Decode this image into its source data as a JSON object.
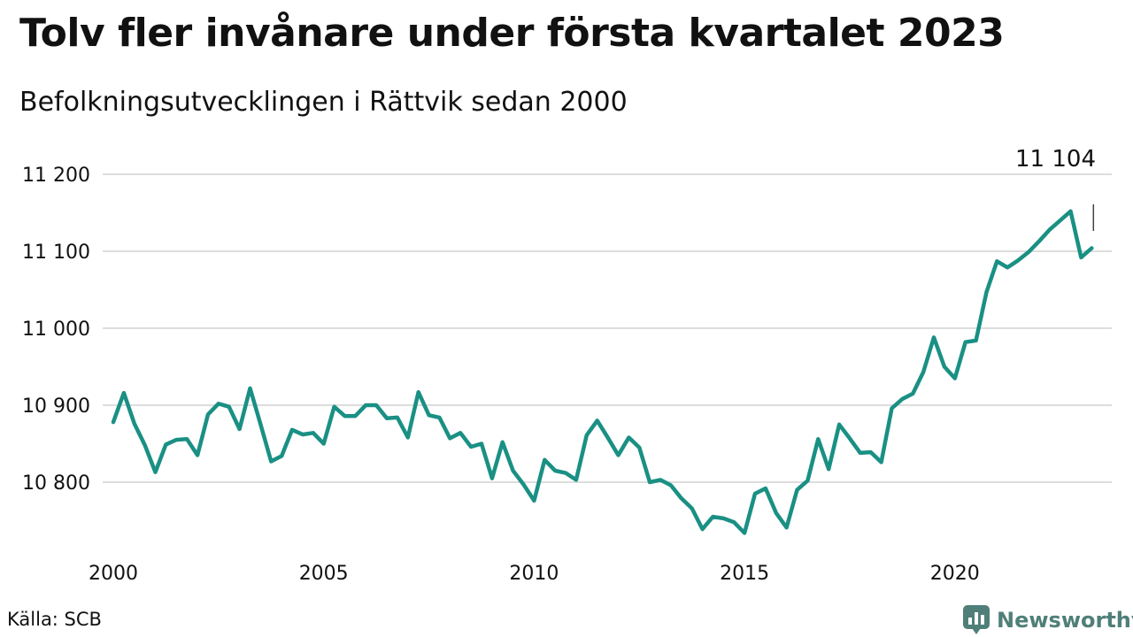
{
  "header": {
    "title": "Tolv fler invånare under första kvartalet 2023",
    "subtitle": "Befolkningsutvecklingen i Rättvik sedan 2000"
  },
  "footer": {
    "source": "Källa: SCB",
    "brand": "Newsworthy"
  },
  "colors": {
    "line": "#1a9084",
    "grid": "#dddddd",
    "text": "#111111",
    "brand": "#4f7f78"
  },
  "chart_data": {
    "type": "line",
    "title": "Tolv fler invånare under första kvartalet 2023",
    "subtitle": "Befolkningsutvecklingen i Rättvik sedan 2000",
    "xlabel": "",
    "ylabel": "",
    "grid": true,
    "legend": "none",
    "x_unit": "quarter",
    "x_start": "2000 Q1",
    "ylim": [
      10720,
      11220
    ],
    "y_ticks": [
      {
        "value": 10800,
        "label": "10 800"
      },
      {
        "value": 10900,
        "label": "10 900"
      },
      {
        "value": 11000,
        "label": "11 000"
      },
      {
        "value": 11100,
        "label": "11 100"
      },
      {
        "value": 11200,
        "label": "11 200"
      }
    ],
    "x_ticks": [
      {
        "value": 2000,
        "label": "2000"
      },
      {
        "value": 2005,
        "label": "2005"
      },
      {
        "value": 2010,
        "label": "2010"
      },
      {
        "value": 2015,
        "label": "2015"
      },
      {
        "value": 2020,
        "label": "2020"
      }
    ],
    "annotation": {
      "label": "11 104",
      "target": "last point"
    },
    "series": [
      {
        "values": [
          10878,
          10916,
          10876,
          10848,
          10813,
          10849,
          10855,
          10856,
          10835,
          10888,
          10902,
          10898,
          10869,
          10922,
          10875,
          10827,
          10834,
          10868,
          10862,
          10864,
          10850,
          10898,
          10886,
          10886,
          10900,
          10900,
          10883,
          10884,
          10858,
          10917,
          10887,
          10884,
          10857,
          10864,
          10846,
          10850,
          10805,
          10852,
          10815,
          10797,
          10776,
          10829,
          10815,
          10812,
          10803,
          10861,
          10880,
          10858,
          10835,
          10858,
          10845,
          10800,
          10803,
          10796,
          10779,
          10766,
          10739,
          10755,
          10753,
          10748,
          10734,
          10785,
          10792,
          10760,
          10741,
          10790,
          10802,
          10856,
          10817,
          10875,
          10857,
          10838,
          10839,
          10826,
          10896,
          10908,
          10915,
          10943,
          10988,
          10950,
          10935,
          10982,
          10984,
          11047,
          11087,
          11079,
          11088,
          11099,
          11113,
          11128,
          11140,
          11152,
          11092,
          11104
        ]
      }
    ]
  }
}
